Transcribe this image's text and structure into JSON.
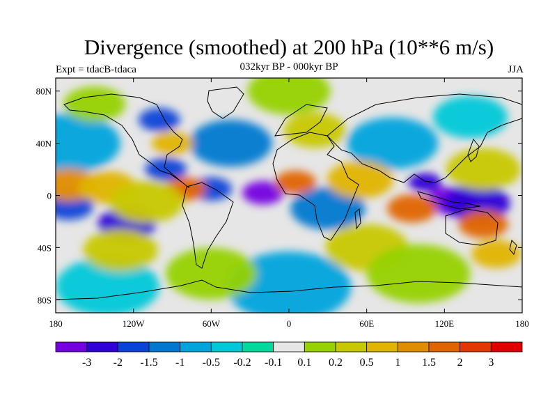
{
  "title": "Divergence (smoothed) at 200 hPa (10**6 m/s)",
  "subtitle_left": "Expt = tdacB-tdaca",
  "subtitle_center": "032kyr BP - 000kyr BP",
  "subtitle_right": "JJA",
  "y_ticks": [
    {
      "value": 80,
      "label": "80N"
    },
    {
      "value": 40,
      "label": "40N"
    },
    {
      "value": 0,
      "label": "0"
    },
    {
      "value": -40,
      "label": "40S"
    },
    {
      "value": -80,
      "label": "80S"
    }
  ],
  "x_ticks": [
    {
      "value": -180,
      "label": "180"
    },
    {
      "value": -120,
      "label": "120W"
    },
    {
      "value": -60,
      "label": "60W"
    },
    {
      "value": 0,
      "label": "0"
    },
    {
      "value": 60,
      "label": "60E"
    },
    {
      "value": 120,
      "label": "120E"
    },
    {
      "value": 180,
      "label": "180"
    }
  ],
  "colorbar": {
    "colors": [
      "#7400e0",
      "#3000d6",
      "#0a44d6",
      "#0078d0",
      "#00a4dc",
      "#00c8d8",
      "#00d89c",
      "#e6e6e6",
      "#96d200",
      "#c8c800",
      "#e0b400",
      "#e08c00",
      "#e06400",
      "#e03800",
      "#e00000"
    ],
    "labels": [
      "-3",
      "-2",
      "-1.5",
      "-1",
      "-0.5",
      "-0.2",
      "-0.1",
      "0.1",
      "0.2",
      "0.5",
      "1",
      "1.5",
      "2",
      "3"
    ]
  },
  "map_fields": [
    {
      "lon": -20,
      "lat": 2,
      "level": 0,
      "r": 10
    },
    {
      "lon": 125,
      "lat": -4,
      "level": 0,
      "r": 12
    },
    {
      "lon": 145,
      "lat": -6,
      "level": 1,
      "r": 16
    },
    {
      "lon": 105,
      "lat": 10,
      "level": 1,
      "r": 8
    },
    {
      "lon": -125,
      "lat": -22,
      "level": 1,
      "r": 14
    },
    {
      "lon": -170,
      "lat": -8,
      "level": 2,
      "r": 12
    },
    {
      "lon": -95,
      "lat": 20,
      "level": 2,
      "r": 10
    },
    {
      "lon": -60,
      "lat": 5,
      "level": 2,
      "r": 10
    },
    {
      "lon": -100,
      "lat": 58,
      "level": 2,
      "r": 10
    },
    {
      "lon": -45,
      "lat": 40,
      "level": 3,
      "r": 20
    },
    {
      "lon": 30,
      "lat": -10,
      "level": 3,
      "r": 18
    },
    {
      "lon": -170,
      "lat": 40,
      "level": 4,
      "r": 25
    },
    {
      "lon": 80,
      "lat": 40,
      "level": 4,
      "r": 22
    },
    {
      "lon": 0,
      "lat": -70,
      "level": 4,
      "r": 30
    },
    {
      "lon": -140,
      "lat": -70,
      "level": 5,
      "r": 25
    },
    {
      "lon": 140,
      "lat": 60,
      "level": 5,
      "r": 18
    },
    {
      "lon": -80,
      "lat": 5,
      "level": 12,
      "r": 10
    },
    {
      "lon": -170,
      "lat": 8,
      "level": 11,
      "r": 14
    },
    {
      "lon": -140,
      "lat": 6,
      "level": 10,
      "r": 14
    },
    {
      "lon": 5,
      "lat": 10,
      "level": 12,
      "r": 10
    },
    {
      "lon": 95,
      "lat": -10,
      "level": 12,
      "r": 12
    },
    {
      "lon": 150,
      "lat": -22,
      "level": 12,
      "r": 12
    },
    {
      "lon": 55,
      "lat": 12,
      "level": 10,
      "r": 16
    },
    {
      "lon": -110,
      "lat": -5,
      "level": 9,
      "r": 18
    },
    {
      "lon": -130,
      "lat": -42,
      "level": 9,
      "r": 18
    },
    {
      "lon": 60,
      "lat": -40,
      "level": 9,
      "r": 20
    },
    {
      "lon": 150,
      "lat": 20,
      "level": 9,
      "r": 18
    },
    {
      "lon": -90,
      "lat": 40,
      "level": 10,
      "r": 10
    },
    {
      "lon": 20,
      "lat": 50,
      "level": 9,
      "r": 15
    },
    {
      "lon": 100,
      "lat": -60,
      "level": 8,
      "r": 25
    },
    {
      "lon": -60,
      "lat": -60,
      "level": 8,
      "r": 22
    },
    {
      "lon": 0,
      "lat": 80,
      "level": 8,
      "r": 20
    },
    {
      "lon": -150,
      "lat": 70,
      "level": 8,
      "r": 15
    },
    {
      "lon": 160,
      "lat": -45,
      "level": 10,
      "r": 12
    }
  ]
}
